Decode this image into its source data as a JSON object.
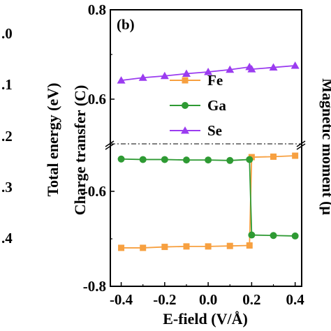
{
  "chart_data": {
    "type": "line",
    "panel_label": "(b)",
    "xlabel": "E-field (V/Å)",
    "ylabel": "Charge transfer (C)",
    "x": [
      -0.4,
      -0.3,
      -0.2,
      -0.1,
      0.0,
      0.1,
      0.19,
      0.2,
      0.3,
      0.4
    ],
    "xlim": [
      -0.45,
      0.43
    ],
    "x_ticks": [
      "-0.4",
      "-0.2",
      "0.0",
      "0.2",
      "0.4"
    ],
    "y_ticks": [
      "0.8",
      "0.6",
      "-0.6",
      "-0.8"
    ],
    "y_broken": true,
    "upper_ylim": [
      0.5,
      0.8
    ],
    "lower_ylim": [
      -0.8,
      -0.5
    ],
    "series": [
      {
        "name": "Fe",
        "color": "#f7a040",
        "marker": "square",
        "values": [
          -0.719,
          -0.719,
          -0.717,
          -0.716,
          -0.716,
          -0.715,
          -0.714,
          -0.528,
          -0.527,
          -0.525
        ]
      },
      {
        "name": "Ga",
        "color": "#2e9a33",
        "marker": "circle",
        "values": [
          -0.532,
          -0.533,
          -0.533,
          -0.534,
          -0.534,
          -0.535,
          -0.533,
          -0.692,
          -0.693,
          -0.694
        ]
      },
      {
        "name": "Se",
        "color": "#9b3cf0",
        "marker": "triangle",
        "values": [
          0.642,
          0.648,
          0.652,
          0.657,
          0.661,
          0.666,
          0.672,
          0.667,
          0.671,
          0.675
        ]
      }
    ],
    "legend_position": "center"
  },
  "cropped_left": {
    "ylabel": "Total energy (eV)",
    "ticks": [
      ".0",
      ".1",
      ".2",
      ".3",
      ".4"
    ]
  },
  "cropped_right": {
    "ylabel": "Magnetic moment (μ"
  }
}
